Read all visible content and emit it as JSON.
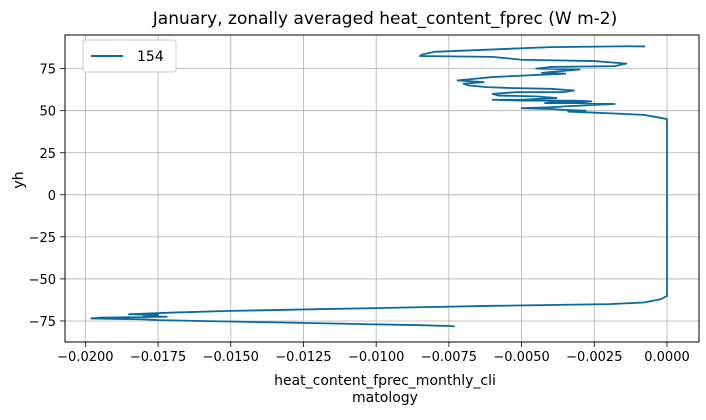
{
  "chart_data": {
    "type": "line",
    "title": "January, zonally averaged heat_content_fprec (W m-2)",
    "xlabel": [
      "heat_content_fprec_monthly_cli",
      "matology"
    ],
    "ylabel": "yh",
    "xlim": [
      -0.0207,
      0.0011
    ],
    "ylim": [
      -87.5,
      95
    ],
    "grid": true,
    "legend_position": "upper-left",
    "x_ticks": [
      {
        "value": -0.02,
        "label": "−0.0200"
      },
      {
        "value": -0.0175,
        "label": "−0.0175"
      },
      {
        "value": -0.015,
        "label": "−0.0150"
      },
      {
        "value": -0.0125,
        "label": "−0.0125"
      },
      {
        "value": -0.01,
        "label": "−0.0100"
      },
      {
        "value": -0.0075,
        "label": "−0.0075"
      },
      {
        "value": -0.005,
        "label": "−0.0050"
      },
      {
        "value": -0.0025,
        "label": "−0.0025"
      },
      {
        "value": 0.0,
        "label": "0.0000"
      }
    ],
    "y_ticks": [
      {
        "value": -75,
        "label": "−75"
      },
      {
        "value": -50,
        "label": "−50"
      },
      {
        "value": -25,
        "label": "−25"
      },
      {
        "value": 0,
        "label": "0"
      },
      {
        "value": 25,
        "label": "25"
      },
      {
        "value": 50,
        "label": "50"
      },
      {
        "value": 75,
        "label": "75"
      }
    ],
    "series": [
      {
        "name": "154",
        "color": "#0a6aa0",
        "points": [
          [
            -0.00075,
            88.2
          ],
          [
            -0.0013,
            88.3
          ],
          [
            -0.004,
            87.8
          ],
          [
            -0.008,
            85.0
          ],
          [
            -0.0084,
            83.5
          ],
          [
            -0.0085,
            82.5
          ],
          [
            -0.006,
            82.0
          ],
          [
            -0.005,
            80.3
          ],
          [
            -0.0025,
            79.5
          ],
          [
            -0.0014,
            78.0
          ],
          [
            -0.0018,
            76.5
          ],
          [
            -0.004,
            76.0
          ],
          [
            -0.0045,
            75.0
          ],
          [
            -0.003,
            74.5
          ],
          [
            -0.004,
            73.0
          ],
          [
            -0.0043,
            72.5
          ],
          [
            -0.0035,
            72.0
          ],
          [
            -0.0048,
            71.0
          ],
          [
            -0.006,
            70.0
          ],
          [
            -0.0066,
            69.0
          ],
          [
            -0.0072,
            68.0
          ],
          [
            -0.0063,
            67.0
          ],
          [
            -0.007,
            66.0
          ],
          [
            -0.0068,
            65.0
          ],
          [
            -0.0062,
            64.0
          ],
          [
            -0.0054,
            63.5
          ],
          [
            -0.004,
            63.0
          ],
          [
            -0.0032,
            62.0
          ],
          [
            -0.0036,
            61.0
          ],
          [
            -0.0052,
            61.0
          ],
          [
            -0.006,
            60.0
          ],
          [
            -0.0058,
            59.0
          ],
          [
            -0.0045,
            58.5
          ],
          [
            -0.0038,
            57.5
          ],
          [
            -0.005,
            56.5
          ],
          [
            -0.006,
            56.5
          ],
          [
            -0.005,
            56.0
          ],
          [
            -0.0032,
            56.0
          ],
          [
            -0.0026,
            55.5
          ],
          [
            -0.003,
            55.0
          ],
          [
            -0.004,
            55.0
          ],
          [
            -0.0042,
            54.5
          ],
          [
            -0.003,
            54.5
          ],
          [
            -0.0018,
            54.0
          ],
          [
            -0.003,
            53.0
          ],
          [
            -0.0036,
            52.5
          ],
          [
            -0.004,
            52.0
          ],
          [
            -0.005,
            51.5
          ],
          [
            -0.004,
            51.0
          ],
          [
            -0.0035,
            50.5
          ],
          [
            -0.0028,
            50.0
          ],
          [
            -0.0034,
            49.5
          ],
          [
            -0.002,
            48.5
          ],
          [
            -0.0008,
            47.5
          ],
          [
            -0.0003,
            46.0
          ],
          [
            0.0,
            45.0
          ],
          [
            0.0,
            40.0
          ],
          [
            0.0,
            0.0
          ],
          [
            0.0,
            -40.0
          ],
          [
            0.0,
            -60.0
          ],
          [
            -0.0002,
            -62.0
          ],
          [
            -0.0008,
            -64.0
          ],
          [
            -0.002,
            -65.0
          ],
          [
            -0.006,
            -66.0
          ],
          [
            -0.009,
            -67.0
          ],
          [
            -0.012,
            -68.0
          ],
          [
            -0.015,
            -69.0
          ],
          [
            -0.017,
            -70.0
          ],
          [
            -0.0185,
            -71.0
          ],
          [
            -0.0175,
            -71.5
          ],
          [
            -0.018,
            -72.0
          ],
          [
            -0.0172,
            -72.5
          ],
          [
            -0.0195,
            -73.0
          ],
          [
            -0.0198,
            -73.5
          ],
          [
            -0.018,
            -74.0
          ],
          [
            -0.0175,
            -74.5
          ],
          [
            -0.016,
            -75.0
          ],
          [
            -0.013,
            -76.0
          ],
          [
            -0.01,
            -77.0
          ],
          [
            -0.0085,
            -77.5
          ],
          [
            -0.0075,
            -78.0
          ],
          [
            -0.0073,
            -78.2
          ]
        ]
      }
    ]
  }
}
